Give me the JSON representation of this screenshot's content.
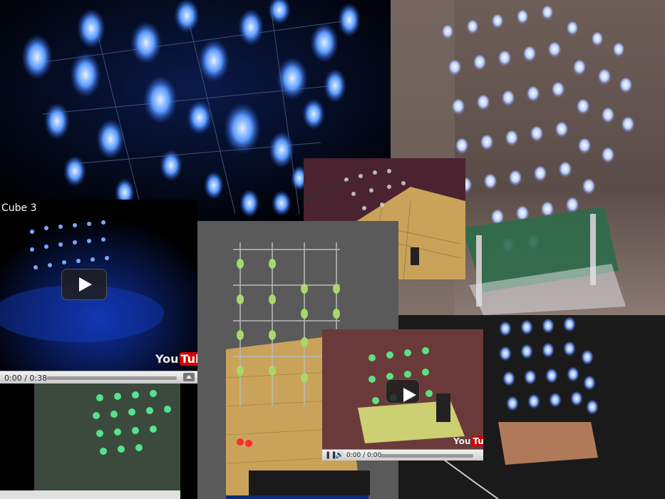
{
  "collage": {
    "photos": [
      {
        "name": "blue-cube-closeup-photo"
      },
      {
        "name": "white-led-cube-photo"
      },
      {
        "name": "green-led-cube-photo"
      },
      {
        "name": "pcb-prototype-photo"
      },
      {
        "name": "blue-cube-desk-photo"
      }
    ]
  },
  "video1": {
    "title": "Cube 3",
    "time": "0:00 / 0:38",
    "logo_you": "You",
    "logo_tube": "Tube"
  },
  "video2": {
    "time": "0:00 / 0:00",
    "logo_you": "You",
    "logo_tube": "Tube"
  },
  "colors": {
    "led_blue": "#3a7bff",
    "led_green": "#39ff6a",
    "pcb": "#c9a35a"
  }
}
